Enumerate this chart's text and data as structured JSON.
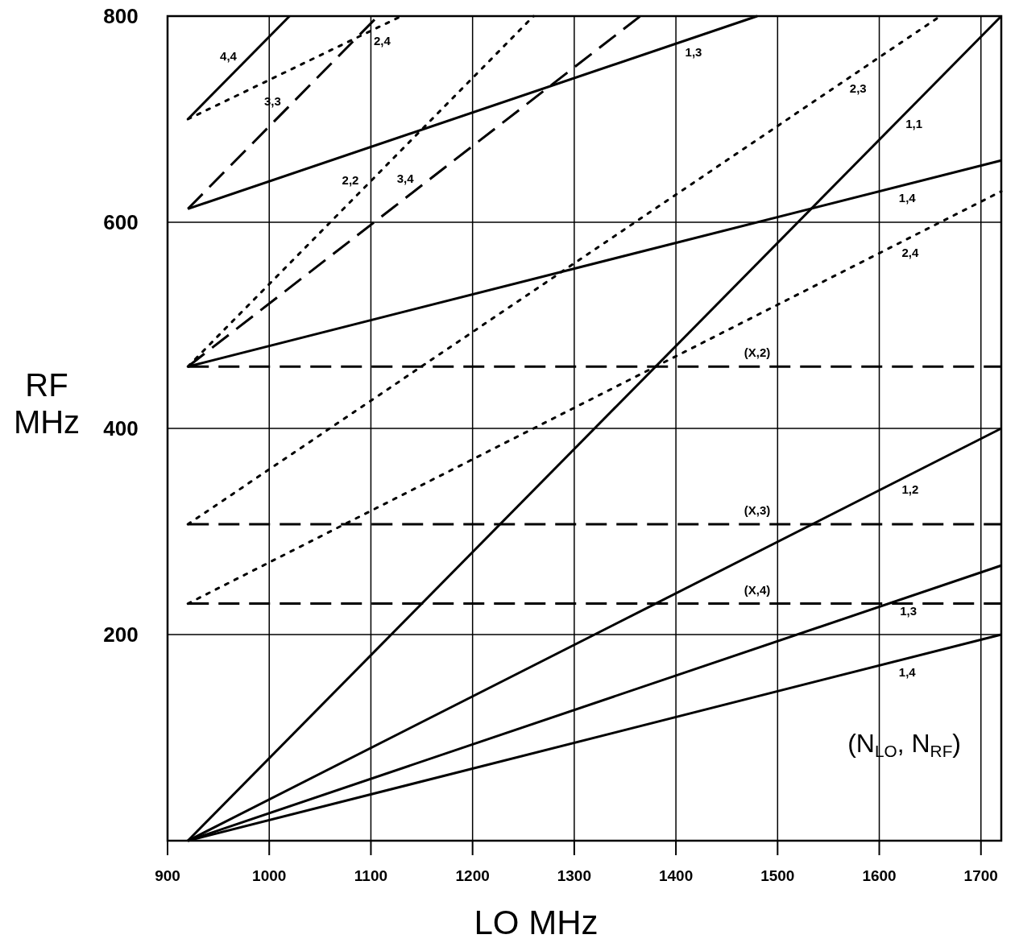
{
  "chart_data": {
    "type": "line",
    "xlabel": "LO MHz",
    "ylabel": "RF MHz",
    "xlim": [
      900,
      1720
    ],
    "xticks": [
      900,
      1000,
      1100,
      1200,
      1300,
      1400,
      1500,
      1600,
      1700
    ],
    "ylim": [
      0,
      800
    ],
    "yticks": [
      200,
      400,
      600,
      800
    ],
    "grid": true,
    "marker": "none",
    "series": [
      {
        "name": "1,1",
        "color": "#000000",
        "line_style": "solid",
        "x": [
          920,
          1720
        ],
        "values": [
          0,
          800
        ]
      },
      {
        "name": "1,2",
        "color": "#000000",
        "line_style": "solid",
        "x": [
          920,
          1720
        ],
        "values": [
          0,
          400
        ]
      },
      {
        "name": "1,3",
        "color": "#000000",
        "line_style": "solid",
        "x": [
          920,
          1720
        ],
        "values": [
          0,
          267
        ]
      },
      {
        "name": "1,4",
        "color": "#000000",
        "line_style": "solid",
        "x": [
          920,
          1720
        ],
        "values": [
          0,
          200
        ]
      },
      {
        "name": "1,3",
        "color": "#000000",
        "line_style": "solid",
        "x": [
          920,
          1480
        ],
        "values": [
          613,
          800
        ]
      },
      {
        "name": "1,4",
        "color": "#000000",
        "line_style": "solid",
        "x": [
          920,
          1720
        ],
        "values": [
          460,
          660
        ]
      },
      {
        "name": "(X,2)",
        "color": "#000000",
        "line_style": "dashed",
        "x": [
          920,
          1720
        ],
        "values": [
          460,
          460
        ]
      },
      {
        "name": "(X,3)",
        "color": "#000000",
        "line_style": "dashed",
        "x": [
          920,
          1720
        ],
        "values": [
          307,
          307
        ]
      },
      {
        "name": "(X,4)",
        "color": "#000000",
        "line_style": "dashed",
        "x": [
          920,
          1720
        ],
        "values": [
          230,
          230
        ]
      },
      {
        "name": "2,2",
        "color": "#000000",
        "line_style": "dotted",
        "x": [
          920,
          1260
        ],
        "values": [
          460,
          800
        ]
      },
      {
        "name": "2,3",
        "color": "#000000",
        "line_style": "dotted",
        "x": [
          920,
          1660
        ],
        "values": [
          307,
          800
        ]
      },
      {
        "name": "2,4",
        "color": "#000000",
        "line_style": "dotted",
        "x": [
          920,
          1720
        ],
        "values": [
          230,
          630
        ]
      },
      {
        "name": "2,4",
        "color": "#000000",
        "line_style": "dotted",
        "x": [
          920,
          1130
        ],
        "values": [
          700,
          800
        ]
      },
      {
        "name": "3,3",
        "color": "#000000",
        "line_style": "dashed",
        "x": [
          920,
          1107
        ],
        "values": [
          613,
          800
        ]
      },
      {
        "name": "3,4",
        "color": "#000000",
        "line_style": "dashed",
        "x": [
          920,
          1365
        ],
        "values": [
          460,
          800
        ]
      },
      {
        "name": "4,4",
        "color": "#000000",
        "line_style": "solid",
        "x": [
          920,
          1020
        ],
        "values": [
          700,
          800
        ]
      }
    ],
    "annotations": [
      "(N$_{LO}$, N$_{RF}$)"
    ]
  }
}
